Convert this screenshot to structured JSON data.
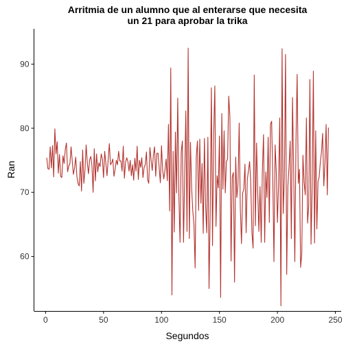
{
  "chart_data": {
    "type": "line",
    "title_lines": [
      "Arritmia de un alumno que al enterarse que necesita",
      "un 21 para aprobar la trika"
    ],
    "xlabel": "Segundos",
    "ylabel": "Ran",
    "xlim": [
      -10,
      255
    ],
    "ylim": [
      51.5,
      95.5
    ],
    "x_ticks": [
      0,
      50,
      100,
      150,
      200,
      250
    ],
    "y_ticks": [
      60,
      70,
      80,
      90
    ],
    "grid": false,
    "line_color": "#b2312c",
    "series": [
      {
        "values": [
          75.4,
          73.7,
          73.6,
          77.1,
          73.8,
          77.3,
          72.4,
          79.9,
          76.0,
          77.9,
          73.0,
          75.9,
          72.5,
          72.3,
          75.7,
          74.5,
          76.7,
          77.7,
          73.2,
          74.1,
          74.5,
          77.1,
          74.9,
          72.8,
          73.8,
          75.5,
          72.5,
          71.4,
          71.0,
          74.8,
          70.2,
          76.6,
          71.4,
          73.5,
          77.4,
          74.6,
          72.9,
          75.1,
          75.6,
          74.2,
          70.0,
          76.8,
          71.8,
          76.0,
          73.2,
          74.6,
          74.0,
          76.0,
          75.2,
          72.3,
          76.4,
          74.5,
          72.6,
          75.1,
          77.6,
          74.3,
          74.6,
          75.2,
          72.5,
          73.6,
          75.0,
          74.3,
          76.4,
          74.9,
          74.9,
          73.3,
          77.2,
          72.2,
          74.7,
          75.4,
          74.8,
          73.3,
          75.0,
          72.6,
          74.3,
          71.9,
          75.3,
          73.3,
          77.2,
          72.0,
          75.0,
          73.9,
          75.4,
          72.3,
          73.9,
          74.3,
          76.3,
          72.0,
          71.4,
          77.0,
          75.1,
          73.4,
          75.8,
          77.1,
          72.5,
          76.1,
          76.1,
          73.8,
          71.5,
          77.3,
          73.4,
          72.1,
          73.5,
          75.2,
          71.8,
          80.6,
          67.1,
          89.4,
          54.0,
          76.4,
          63.8,
          79.4,
          69.9,
          84.7,
          69.3,
          62.2,
          76.3,
          78.0,
          62.2,
          72.6,
          82.7,
          63.9,
          92.5,
          62.8,
          77.8,
          70.6,
          67.1,
          64.9,
          58.2,
          75.6,
          78.0,
          67.2,
          78.3,
          68.3,
          74.5,
          63.6,
          78.4,
          68.0,
          63.7,
          78.6,
          55.0,
          66.8,
          86.3,
          61.7,
          79.1,
          86.6,
          64.7,
          72.6,
          70.7,
          78.8,
          53.6,
          82.3,
          70.5,
          79.6,
          69.9,
          74.8,
          75.2,
          85.0,
          81.8,
          59.3,
          72.4,
          73.1,
          56.0,
          75.5,
          69.2,
          71.3,
          80.8,
          67.4,
          62.0,
          69.9,
          70.5,
          74.4,
          63.7,
          72.0,
          73.4,
          74.8,
          71.5,
          63.7,
          61.3,
          88.3,
          64.8,
          77.7,
          70.0,
          63.9,
          70.9,
          62.2,
          73.3,
          79.0,
          62.2,
          73.2,
          69.2,
          78.6,
          65.3,
          80.6,
          81.1,
          72.1,
          59.2,
          77.4,
          73.3,
          65.3,
          71.4,
          81.6,
          52.3,
          92.4,
          66.7,
          72.4,
          91.5,
          57.2,
          70.9,
          74.0,
          78.0,
          62.8,
          84.8,
          73.5,
          59.2,
          78.0,
          88.4,
          71.4,
          73.6,
          58.3,
          60.4,
          75.8,
          71.6,
          69.6,
          81.6,
          65.2,
          68.0,
          87.6,
          61.9,
          71.0,
          88.9,
          62.1,
          79.6,
          64.3,
          71.7,
          72.4,
          74.7,
          76.3,
          79.2,
          71.0,
          74.6,
          80.6,
          69.6,
          80.1
        ]
      }
    ]
  }
}
